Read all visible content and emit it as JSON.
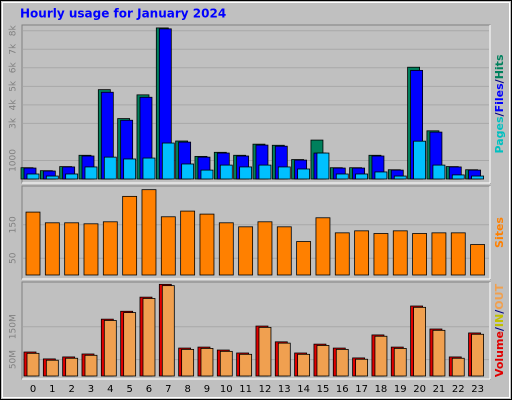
{
  "chart_data": [
    {
      "type": "bar",
      "title": "Hourly usage for January 2024",
      "series": [
        {
          "name": "Hits",
          "color": "#00805c",
          "values": [
            610,
            450,
            670,
            1280,
            4820,
            3260,
            4540,
            8150,
            2050,
            1220,
            1440,
            1280,
            1880,
            1820,
            1050,
            2100,
            610,
            610,
            1280,
            500,
            6030,
            2600,
            670,
            500
          ]
        },
        {
          "name": "Files",
          "color": "#0000ff",
          "values": [
            590,
            430,
            650,
            1240,
            4680,
            3170,
            4410,
            8100,
            1990,
            1180,
            1400,
            1240,
            1830,
            1770,
            1020,
            1400,
            590,
            590,
            1240,
            480,
            5860,
            2530,
            650,
            480
          ]
        },
        {
          "name": "Pages",
          "color": "#00c0ff",
          "values": [
            270,
            160,
            270,
            650,
            1180,
            1080,
            1130,
            1940,
            810,
            480,
            750,
            650,
            750,
            650,
            540,
            1400,
            270,
            270,
            380,
            160,
            2040,
            750,
            220,
            160
          ]
        }
      ],
      "legend_colors": [
        "#00c0c0",
        "#0000ff",
        "#00805c"
      ],
      "legend_separator": "/",
      "ylim": [
        0,
        8200
      ],
      "yticks": [
        {
          "value": 1000,
          "label": "1000"
        },
        {
          "value": 3000,
          "label": "3k"
        },
        {
          "value": 4000,
          "label": "4k"
        },
        {
          "value": 5000,
          "label": "5k"
        },
        {
          "value": 6000,
          "label": "6k"
        },
        {
          "value": 7000,
          "label": "7k"
        },
        {
          "value": 8000,
          "label": "8k"
        }
      ]
    },
    {
      "type": "bar",
      "series": [
        {
          "name": "Sites",
          "color": "#ff8000",
          "values": [
            188,
            156,
            156,
            153,
            159,
            235,
            255,
            174,
            191,
            182,
            156,
            144,
            159,
            144,
            100,
            171,
            126,
            132,
            124,
            132,
            124,
            126,
            126,
            91
          ]
        }
      ],
      "ylim": [
        0,
        260
      ],
      "yticks": [
        50,
        150
      ]
    },
    {
      "type": "bar",
      "series": [
        {
          "name": "Volume",
          "color": "#e00000",
          "values": [
            73,
            52,
            58,
            67,
            173,
            197,
            240,
            279,
            85,
            88,
            79,
            70,
            152,
            104,
            70,
            97,
            85,
            55,
            125,
            88,
            213,
            143,
            58,
            131
          ]
        },
        {
          "name": "OUT",
          "color": "#f0a050",
          "values": [
            69,
            48,
            54,
            63,
            169,
            193,
            236,
            275,
            81,
            84,
            75,
            66,
            148,
            100,
            66,
            93,
            81,
            51,
            121,
            84,
            209,
            139,
            54,
            127
          ]
        }
      ],
      "legend_only": [
        {
          "name": "IN",
          "color": "#c0c000"
        }
      ],
      "legend_separator": "/",
      "ylim": [
        0,
        280
      ],
      "yticks": [
        {
          "value": 50,
          "label": "50M"
        },
        {
          "value": 150,
          "label": "150M"
        }
      ],
      "categories": [
        0,
        1,
        2,
        3,
        4,
        5,
        6,
        7,
        8,
        9,
        10,
        11,
        12,
        13,
        14,
        15,
        16,
        17,
        18,
        19,
        20,
        21,
        22,
        23
      ]
    }
  ]
}
